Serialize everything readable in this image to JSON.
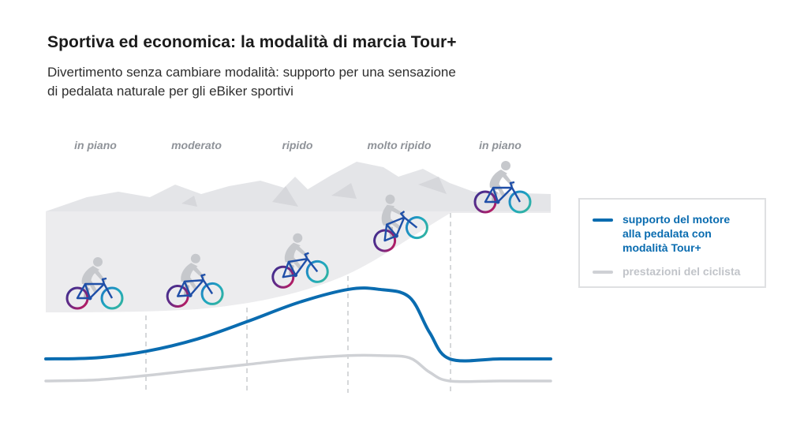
{
  "header": {
    "title": "Sportiva ed economica: la modalità di marcia Tour+",
    "subtitle_line1": "Divertimento senza cambiare modalità: supporto per una sensazione",
    "subtitle_line2": "di pedalata naturale per gli eBiker sportivi"
  },
  "colors": {
    "motor": "#0a6cb0",
    "rider": "#cfd1d5",
    "terrain": "#ececee",
    "mountains": "#e4e5e8",
    "rider_figure": "#c6c8cc",
    "divider": "#c4c7cb"
  },
  "chart_data": {
    "type": "line",
    "title": "Sportiva ed economica: la modalità di marcia Tour+",
    "categories": [
      "in piano",
      "moderato",
      "ripido",
      "molto ripido",
      "in piano"
    ],
    "y_scale": "relative, no numeric axis",
    "grid": false,
    "legend_position": "right",
    "series": [
      {
        "name": "supporto del motore alla pedalata con modalità Tour+",
        "color": "#0a6cb0",
        "x": [
          0,
          0.5,
          1,
          1.5,
          2,
          2.5,
          3,
          3.3,
          3.6,
          3.8,
          4,
          4.5,
          5
        ],
        "values": [
          1.0,
          1.05,
          1.35,
          1.9,
          2.7,
          3.55,
          4.15,
          4.15,
          3.8,
          2.2,
          1.0,
          1.0,
          1.0
        ]
      },
      {
        "name": "prestazioni del ciclista",
        "color": "#cfd1d5",
        "x": [
          0,
          0.5,
          1,
          1.5,
          2,
          2.5,
          3,
          3.3,
          3.6,
          3.8,
          4,
          4.5,
          5
        ],
        "values": [
          0.0,
          0.05,
          0.25,
          0.5,
          0.75,
          1.0,
          1.15,
          1.15,
          1.05,
          0.4,
          0.0,
          0.0,
          0.0
        ]
      }
    ]
  },
  "legend": {
    "motor_line1": "supporto del motore",
    "motor_line2": "alla pedalata con",
    "motor_line3": "modalità Tour+",
    "rider": "prestazioni del ciclista"
  }
}
